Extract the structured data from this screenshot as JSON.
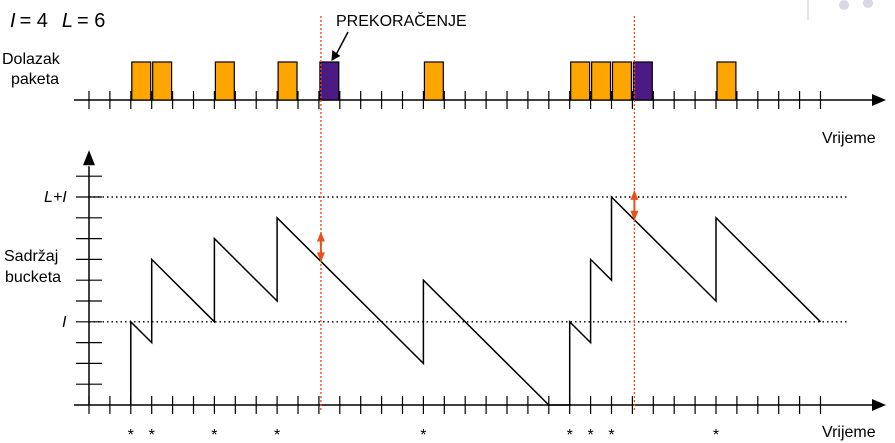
{
  "params": {
    "i_symbol": "I",
    "i_value": "= 4",
    "l_symbol": "L",
    "l_value": "= 6"
  },
  "labels": {
    "overflow": "PREKORAČENJE",
    "arrivals_line1": "Dolazak",
    "arrivals_line2": "paketa",
    "time_top": "Vrijeme",
    "time_bottom": "Vrijeme",
    "content_line1": "Sadržaj",
    "content_line2": "bucketa",
    "level_l_plus_i": "L+I",
    "level_i": "I",
    "arrival_mark": "*"
  },
  "colors": {
    "accepted_packet": "#ffa500",
    "dropped_packet": "#4b1a82",
    "overflow_marker": "#e8521a",
    "axis": "#000000"
  },
  "packets": [
    {
      "slot": 2,
      "status": "accepted"
    },
    {
      "slot": 3,
      "status": "accepted"
    },
    {
      "slot": 6,
      "status": "accepted"
    },
    {
      "slot": 9,
      "status": "accepted"
    },
    {
      "slot": 11,
      "status": "dropped"
    },
    {
      "slot": 16,
      "status": "accepted"
    },
    {
      "slot": 23,
      "status": "accepted"
    },
    {
      "slot": 24,
      "status": "accepted"
    },
    {
      "slot": 25,
      "status": "accepted"
    },
    {
      "slot": 26,
      "status": "dropped"
    },
    {
      "slot": 30,
      "status": "accepted"
    }
  ],
  "arrival_slots": [
    2,
    3,
    6,
    9,
    16,
    23,
    24,
    25,
    30
  ],
  "overflow_slots": [
    11,
    26
  ],
  "bucket_trace": [
    [
      2,
      0
    ],
    [
      2,
      4
    ],
    [
      3,
      3
    ],
    [
      3,
      7
    ],
    [
      6,
      4
    ],
    [
      6,
      8
    ],
    [
      9,
      5
    ],
    [
      9,
      9
    ],
    [
      16,
      2
    ],
    [
      16,
      6
    ],
    [
      22,
      0
    ],
    [
      23,
      0
    ],
    [
      23,
      4
    ],
    [
      24,
      3
    ],
    [
      24,
      7
    ],
    [
      25,
      6
    ],
    [
      25,
      10
    ],
    [
      30,
      5
    ],
    [
      30,
      9
    ],
    [
      35,
      4
    ]
  ],
  "levels": {
    "i": 4,
    "l_plus_i": 10
  },
  "y_max": 11
}
